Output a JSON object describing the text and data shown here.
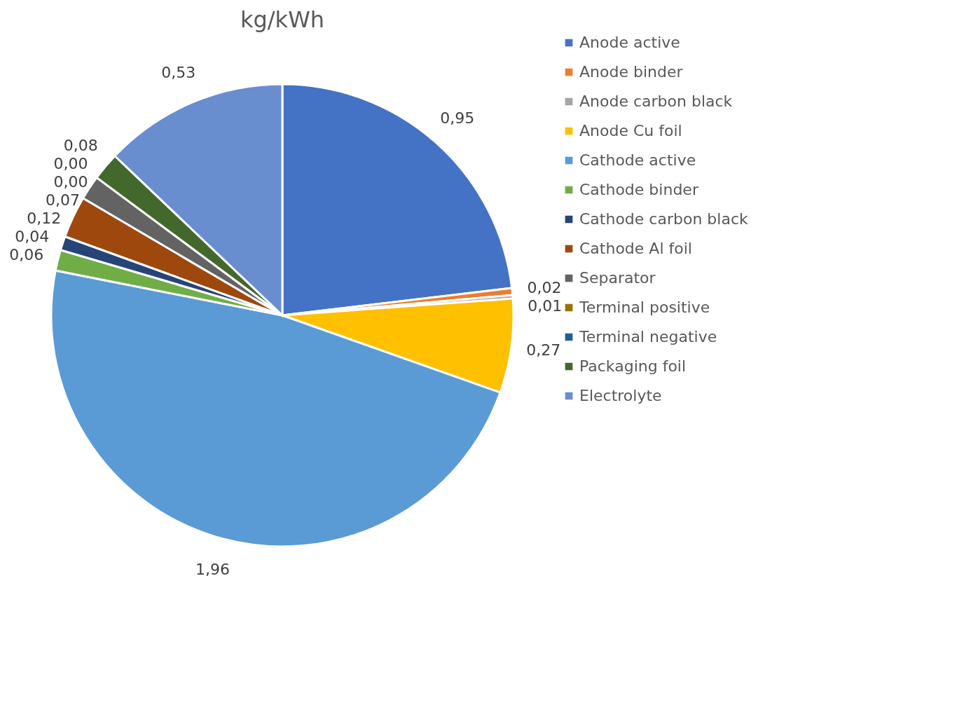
{
  "chart_data": {
    "type": "pie",
    "title": "kg/kWh",
    "categories": [
      "Anode active",
      "Anode binder",
      "Anode carbon black",
      "Anode Cu foil",
      "Cathode active",
      "Cathode binder",
      "Cathode carbon black",
      "Cathode Al foil",
      "Separator",
      "Terminal positive",
      "Terminal negative",
      "Packaging foil",
      "Electrolyte"
    ],
    "values": [
      0.95,
      0.02,
      0.01,
      0.27,
      1.96,
      0.06,
      0.04,
      0.12,
      0.07,
      0.0,
      0.0,
      0.08,
      0.53
    ],
    "value_labels": [
      "0,95",
      "0,02",
      "0,01",
      "0,27",
      "1,96",
      "0,06",
      "0,04",
      "0,12",
      "0,07",
      "0,00",
      "0,00",
      "0,08",
      "0,53"
    ],
    "colors": [
      "#4472c4",
      "#ed7d31",
      "#a5a5a5",
      "#ffc000",
      "#5b9bd5",
      "#70ad47",
      "#264478",
      "#9e480e",
      "#636363",
      "#997300",
      "#255e91",
      "#43682b",
      "#698ed0"
    ],
    "legend": "right"
  }
}
